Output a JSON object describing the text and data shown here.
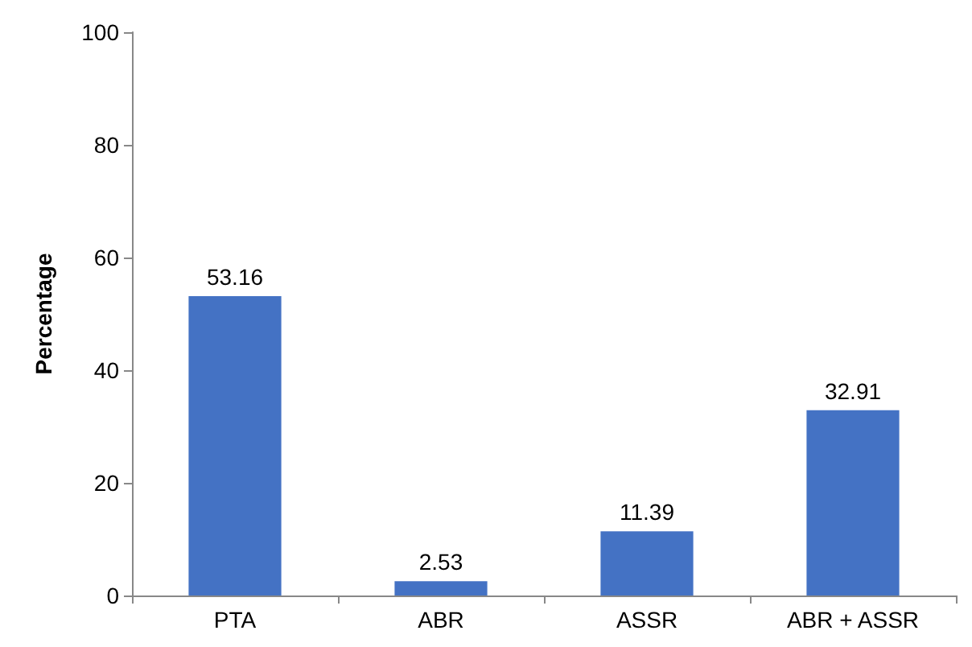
{
  "chart_data": {
    "type": "bar",
    "ylabel": "Percentage",
    "categories": [
      "PTA",
      "ABR",
      "ASSR",
      "ABR + ASSR"
    ],
    "values": [
      53.16,
      2.53,
      11.39,
      32.91
    ],
    "color": "#4472c4",
    "ylim": [
      0,
      100
    ],
    "yticks": [
      0,
      20,
      40,
      60,
      80,
      100
    ],
    "grid": false,
    "data_labels": true
  }
}
